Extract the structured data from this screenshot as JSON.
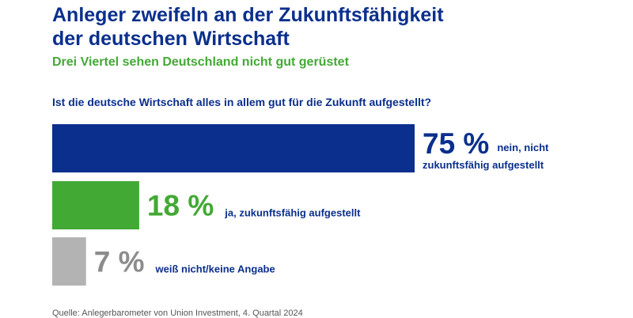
{
  "header": {
    "title_line1": "Anleger zweifeln an der Zukunftsfähigkeit",
    "title_line2": "der deutschen Wirtschaft",
    "subtitle": "Drei Viertel sehen Deutschland nicht gut gerüstet"
  },
  "colors": {
    "navy": "#0a2f8c",
    "green": "#43a935",
    "gray": "#b3b3b3",
    "gray_text": "#8c8c8c"
  },
  "chart_data": {
    "type": "bar",
    "orientation": "horizontal",
    "title": "Ist die deutsche Wirtschaft alles in allem gut für die Zukunft aufgestellt?",
    "xlabel": "",
    "ylabel": "",
    "unit": "%",
    "xlim": [
      0,
      100
    ],
    "grid": false,
    "categories": [
      "nein, nicht zukunftsfähig aufgestellt",
      "ja, zukunftsfähig aufgestellt",
      "weiß nicht/keine Angabe"
    ],
    "values": [
      75,
      18,
      7
    ],
    "value_labels": [
      "75 %",
      "18 %",
      "7 %"
    ],
    "label_lines": [
      [
        "nein, nicht",
        "zukunftsfähig aufgestellt"
      ],
      [
        "ja, zukunftsfähig aufgestellt"
      ],
      [
        "weiß nicht/keine Angabe"
      ]
    ],
    "bar_colors": [
      "#0a2f8c",
      "#43a935",
      "#b3b3b3"
    ],
    "value_colors": [
      "#0a2f8c",
      "#43a935",
      "#8c8c8c"
    ],
    "source": "Quelle: Anlegerbarometer von Union Investment, 4. Quartal 2024"
  }
}
